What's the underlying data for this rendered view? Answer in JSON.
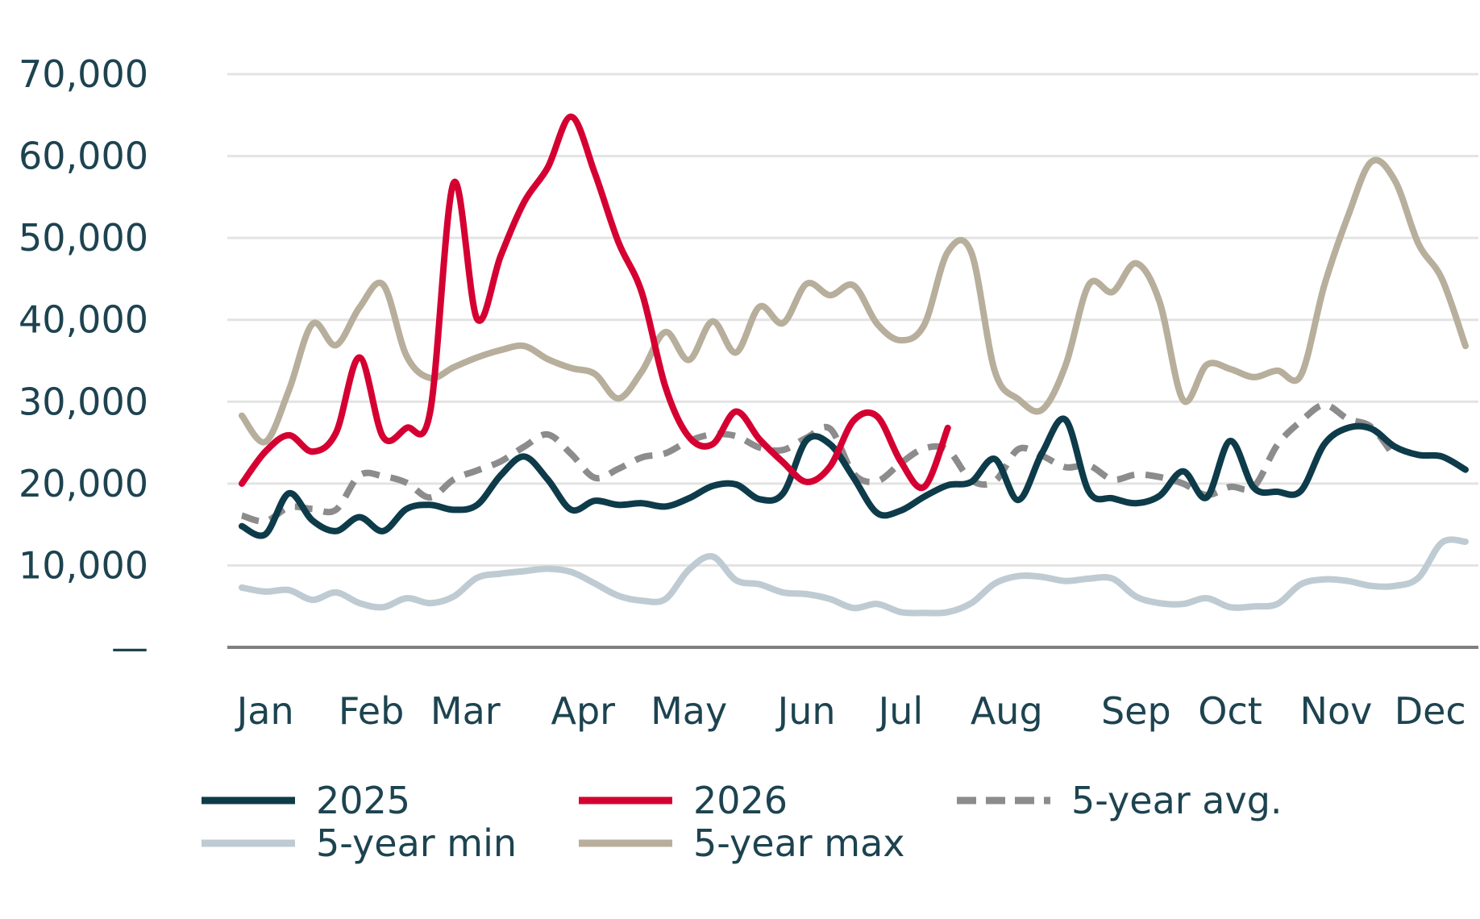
{
  "chart_data": {
    "type": "line",
    "title": "",
    "xlabel": "",
    "ylabel": "",
    "ylim": [
      0,
      70000
    ],
    "y_ticks": [
      {
        "value": 0,
        "label": "—"
      },
      {
        "value": 10000,
        "label": "10,000"
      },
      {
        "value": 20000,
        "label": "20,000"
      },
      {
        "value": 30000,
        "label": "30,000"
      },
      {
        "value": 40000,
        "label": "40,000"
      },
      {
        "value": 50000,
        "label": "50,000"
      },
      {
        "value": 60000,
        "label": "60,000"
      },
      {
        "value": 70000,
        "label": "70,000"
      }
    ],
    "x_domain": [
      1,
      53
    ],
    "x_tick_label_weeks": [
      2,
      6.5,
      10.5,
      15.5,
      20,
      25,
      29,
      33.5,
      39,
      43,
      47.5,
      51.5
    ],
    "categories": [
      "Jan",
      "Feb",
      "Mar",
      "Apr",
      "May",
      "Jun",
      "Jul",
      "Aug",
      "Sep",
      "Oct",
      "Nov",
      "Dec"
    ],
    "grid": true,
    "legend_position": "bottom",
    "series": [
      {
        "name": "2025",
        "color": "#0d3b4a",
        "style": "solid",
        "points": [
          [
            1,
            14800
          ],
          [
            2,
            13800
          ],
          [
            3,
            18800
          ],
          [
            4,
            15500
          ],
          [
            5,
            14200
          ],
          [
            6,
            15900
          ],
          [
            7,
            14200
          ],
          [
            8,
            16900
          ],
          [
            9,
            17400
          ],
          [
            10,
            16800
          ],
          [
            11,
            17400
          ],
          [
            12,
            21000
          ],
          [
            13,
            23300
          ],
          [
            14,
            20500
          ],
          [
            15,
            16800
          ],
          [
            16,
            17900
          ],
          [
            17,
            17400
          ],
          [
            18,
            17600
          ],
          [
            19,
            17200
          ],
          [
            20,
            18200
          ],
          [
            21,
            19700
          ],
          [
            22,
            19900
          ],
          [
            23,
            18100
          ],
          [
            24,
            18800
          ],
          [
            25,
            25300
          ],
          [
            26,
            24800
          ],
          [
            27,
            20700
          ],
          [
            28,
            16400
          ],
          [
            29,
            16700
          ],
          [
            30,
            18400
          ],
          [
            31,
            19800
          ],
          [
            32,
            20200
          ],
          [
            33,
            23000
          ],
          [
            34,
            18000
          ],
          [
            35,
            23700
          ],
          [
            36,
            27800
          ],
          [
            37,
            19000
          ],
          [
            38,
            18200
          ],
          [
            39,
            17600
          ],
          [
            40,
            18500
          ],
          [
            41,
            21500
          ],
          [
            42,
            18300
          ],
          [
            43,
            25200
          ],
          [
            44,
            19500
          ],
          [
            45,
            19000
          ],
          [
            46,
            19100
          ],
          [
            47,
            24800
          ],
          [
            48,
            26800
          ],
          [
            49,
            26700
          ],
          [
            50,
            24500
          ],
          [
            51,
            23500
          ],
          [
            52,
            23300
          ],
          [
            53,
            21700
          ]
        ]
      },
      {
        "name": "2026",
        "color": "#d50032",
        "style": "solid",
        "points": [
          [
            1,
            20000
          ],
          [
            2,
            23900
          ],
          [
            3,
            25900
          ],
          [
            4,
            23900
          ],
          [
            5,
            26200
          ],
          [
            6,
            35400
          ],
          [
            7,
            25700
          ],
          [
            8,
            26800
          ],
          [
            9,
            28700
          ],
          [
            10,
            56700
          ],
          [
            11,
            40100
          ],
          [
            12,
            47800
          ],
          [
            13,
            54400
          ],
          [
            14,
            58600
          ],
          [
            15,
            64800
          ],
          [
            16,
            57900
          ],
          [
            17,
            49500
          ],
          [
            18,
            43300
          ],
          [
            19,
            31800
          ],
          [
            20,
            25700
          ],
          [
            21,
            24800
          ],
          [
            22,
            28800
          ],
          [
            23,
            25400
          ],
          [
            24,
            22600
          ],
          [
            25,
            20200
          ],
          [
            26,
            22100
          ],
          [
            27,
            27700
          ],
          [
            28,
            28200
          ],
          [
            29,
            22700
          ],
          [
            30,
            19600
          ],
          [
            31,
            26800
          ]
        ]
      },
      {
        "name": "5-year avg.",
        "color": "#8c8c8c",
        "style": "dashed",
        "points": [
          [
            1,
            16100
          ],
          [
            2,
            15400
          ],
          [
            3,
            17100
          ],
          [
            4,
            16900
          ],
          [
            5,
            16800
          ],
          [
            6,
            21000
          ],
          [
            7,
            20900
          ],
          [
            8,
            20100
          ],
          [
            9,
            18300
          ],
          [
            10,
            20500
          ],
          [
            11,
            21600
          ],
          [
            12,
            22700
          ],
          [
            13,
            24500
          ],
          [
            14,
            26000
          ],
          [
            15,
            23600
          ],
          [
            16,
            20700
          ],
          [
            17,
            21800
          ],
          [
            18,
            23200
          ],
          [
            19,
            23700
          ],
          [
            20,
            25200
          ],
          [
            21,
            26000
          ],
          [
            22,
            25800
          ],
          [
            23,
            24400
          ],
          [
            24,
            24100
          ],
          [
            25,
            25600
          ],
          [
            26,
            26700
          ],
          [
            27,
            21200
          ],
          [
            28,
            20300
          ],
          [
            29,
            22500
          ],
          [
            30,
            24300
          ],
          [
            31,
            24100
          ],
          [
            32,
            20400
          ],
          [
            33,
            20300
          ],
          [
            34,
            24200
          ],
          [
            35,
            23400
          ],
          [
            36,
            22000
          ],
          [
            37,
            22200
          ],
          [
            38,
            20500
          ],
          [
            39,
            21100
          ],
          [
            40,
            20800
          ],
          [
            41,
            20000
          ],
          [
            42,
            18600
          ],
          [
            43,
            19600
          ],
          [
            44,
            19600
          ],
          [
            45,
            24700
          ],
          [
            46,
            27600
          ],
          [
            47,
            29600
          ],
          [
            48,
            27900
          ],
          [
            49,
            26900
          ],
          [
            50,
            23200
          ]
        ]
      },
      {
        "name": "5-year min",
        "color": "#bfcbd3",
        "style": "solid",
        "points": [
          [
            1,
            7300
          ],
          [
            2,
            6800
          ],
          [
            3,
            7000
          ],
          [
            4,
            5800
          ],
          [
            5,
            6700
          ],
          [
            6,
            5400
          ],
          [
            7,
            4900
          ],
          [
            8,
            6000
          ],
          [
            9,
            5400
          ],
          [
            10,
            6200
          ],
          [
            11,
            8500
          ],
          [
            12,
            9000
          ],
          [
            13,
            9300
          ],
          [
            14,
            9600
          ],
          [
            15,
            9200
          ],
          [
            16,
            7800
          ],
          [
            17,
            6300
          ],
          [
            18,
            5700
          ],
          [
            19,
            5900
          ],
          [
            20,
            9500
          ],
          [
            21,
            11100
          ],
          [
            22,
            8200
          ],
          [
            23,
            7700
          ],
          [
            24,
            6700
          ],
          [
            25,
            6500
          ],
          [
            26,
            5900
          ],
          [
            27,
            4800
          ],
          [
            28,
            5300
          ],
          [
            29,
            4300
          ],
          [
            30,
            4200
          ],
          [
            31,
            4300
          ],
          [
            32,
            5400
          ],
          [
            33,
            7800
          ],
          [
            34,
            8700
          ],
          [
            35,
            8600
          ],
          [
            36,
            8100
          ],
          [
            37,
            8400
          ],
          [
            38,
            8400
          ],
          [
            39,
            6200
          ],
          [
            40,
            5400
          ],
          [
            41,
            5300
          ],
          [
            42,
            6000
          ],
          [
            43,
            4900
          ],
          [
            44,
            5000
          ],
          [
            45,
            5300
          ],
          [
            46,
            7700
          ],
          [
            47,
            8300
          ],
          [
            48,
            8100
          ],
          [
            49,
            7500
          ],
          [
            50,
            7500
          ],
          [
            51,
            8500
          ],
          [
            52,
            12800
          ],
          [
            53,
            12900
          ],
          [
            54,
            11800
          ]
        ]
      },
      {
        "name": "5-year max",
        "color": "#b7ae9c",
        "style": "solid",
        "points": [
          [
            1,
            28300
          ],
          [
            2,
            25100
          ],
          [
            3,
            31400
          ],
          [
            4,
            39500
          ],
          [
            5,
            36900
          ],
          [
            6,
            41500
          ],
          [
            7,
            44300
          ],
          [
            8,
            35600
          ],
          [
            9,
            32900
          ],
          [
            10,
            34200
          ],
          [
            11,
            35400
          ],
          [
            12,
            36300
          ],
          [
            13,
            36800
          ],
          [
            14,
            35200
          ],
          [
            15,
            34100
          ],
          [
            16,
            33400
          ],
          [
            17,
            30400
          ],
          [
            18,
            33700
          ],
          [
            19,
            38500
          ],
          [
            20,
            35100
          ],
          [
            21,
            39800
          ],
          [
            22,
            36000
          ],
          [
            23,
            41600
          ],
          [
            24,
            39600
          ],
          [
            25,
            44400
          ],
          [
            26,
            43000
          ],
          [
            27,
            44200
          ],
          [
            28,
            39500
          ],
          [
            29,
            37500
          ],
          [
            30,
            39400
          ],
          [
            31,
            48300
          ],
          [
            32,
            48200
          ],
          [
            33,
            33700
          ],
          [
            34,
            30300
          ],
          [
            35,
            29000
          ],
          [
            36,
            34400
          ],
          [
            37,
            44300
          ],
          [
            38,
            43400
          ],
          [
            39,
            46900
          ],
          [
            40,
            42200
          ],
          [
            41,
            30200
          ],
          [
            42,
            34500
          ],
          [
            43,
            34000
          ],
          [
            44,
            33000
          ],
          [
            45,
            33800
          ],
          [
            46,
            33200
          ],
          [
            47,
            44200
          ],
          [
            48,
            52600
          ],
          [
            49,
            59300
          ],
          [
            50,
            57000
          ],
          [
            51,
            49300
          ],
          [
            52,
            45000
          ],
          [
            53,
            36800
          ]
        ]
      }
    ]
  }
}
